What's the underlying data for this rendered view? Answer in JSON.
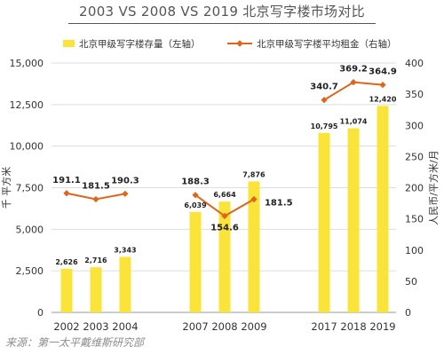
{
  "chart_data": {
    "type": "bar+line",
    "title": "2003 VS 2008 VS 2019 北京写字楼市场对比",
    "categories": [
      "2002",
      "2003",
      "2004",
      "2007",
      "2008",
      "2009",
      "2017",
      "2018",
      "2019"
    ],
    "groups": [
      [
        "2002",
        "2003",
        "2004"
      ],
      [
        "2007",
        "2008",
        "2009"
      ],
      [
        "2017",
        "2018",
        "2019"
      ]
    ],
    "series": [
      {
        "name": "北京甲级写字楼存量（左轴）",
        "type": "bar",
        "axis": "left",
        "color": "#FBE43A",
        "values": [
          2626,
          2716,
          3343,
          6039,
          6664,
          7876,
          10795,
          11074,
          12420
        ],
        "labels": [
          "2,626",
          "2,716",
          "3,343",
          "6,039",
          "6,664",
          "7,876",
          "10,795",
          "11,074",
          "12,420"
        ]
      },
      {
        "name": "北京甲级写字楼平均租金（右轴）",
        "type": "line",
        "axis": "right",
        "color": "#E0651B",
        "values": [
          191.1,
          181.5,
          190.3,
          188.3,
          154.6,
          181.5,
          340.7,
          369.2,
          364.9
        ],
        "labels": [
          "191.1",
          "181.5",
          "190.3",
          "188.3",
          "154.6",
          "181.5",
          "340.7",
          "369.2",
          "364.9"
        ]
      }
    ],
    "left_axis": {
      "label": "千 平方米",
      "ylim": [
        0,
        15000
      ],
      "ticks": [
        0,
        2500,
        5000,
        7500,
        10000,
        12500,
        15000
      ],
      "tick_labels": [
        "0",
        "2,500",
        "5,000",
        "7,500",
        "10,000",
        "12,500",
        "15,000"
      ]
    },
    "right_axis": {
      "label": "人民币/平方米/月",
      "ylim": [
        0,
        400
      ],
      "ticks": [
        0,
        50,
        100,
        150,
        200,
        250,
        300,
        350,
        400
      ],
      "tick_labels": [
        "0",
        "50",
        "100",
        "150",
        "200",
        "250",
        "300",
        "350",
        "400"
      ]
    },
    "grid": true,
    "legend_position": "top"
  },
  "source_text": "来源：第一太平戴维斯研究部",
  "colors": {
    "bar": "#FBE43A",
    "line": "#E0651B",
    "grid": "#dddddd",
    "axis": "#999999",
    "text": "#333333"
  }
}
